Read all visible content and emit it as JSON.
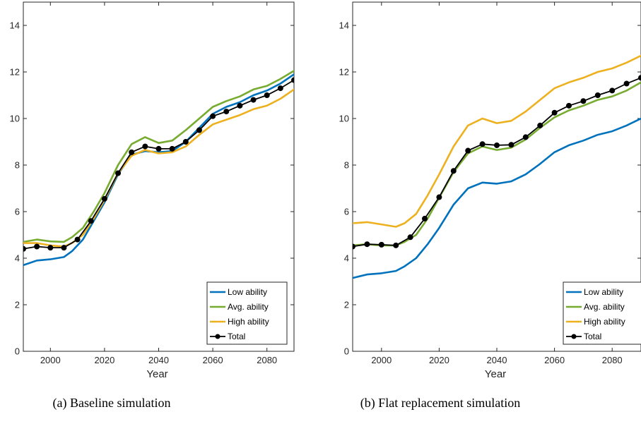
{
  "chart_data": [
    {
      "type": "line",
      "caption": "(a)  Baseline simulation",
      "xlabel": "Year",
      "ylabel": "",
      "xlim": [
        1990,
        2090
      ],
      "ylim": [
        0,
        15
      ],
      "xticks": [
        2000,
        2020,
        2040,
        2060,
        2080
      ],
      "yticks": [
        0,
        2,
        4,
        6,
        8,
        10,
        12,
        14
      ],
      "grid": false,
      "legend_position": "bottom-right",
      "series": [
        {
          "name": "Low ability",
          "color": "#0072BD",
          "marker": "none",
          "x": [
            1990,
            1995,
            2000,
            2005,
            2008,
            2012,
            2016,
            2020,
            2025,
            2030,
            2035,
            2040,
            2045,
            2050,
            2055,
            2060,
            2065,
            2070,
            2075,
            2080,
            2085,
            2090
          ],
          "y": [
            3.7,
            3.9,
            3.95,
            4.05,
            4.3,
            4.8,
            5.6,
            6.4,
            7.6,
            8.45,
            8.6,
            8.55,
            8.6,
            9.0,
            9.6,
            10.2,
            10.5,
            10.7,
            11.0,
            11.2,
            11.5,
            11.9
          ]
        },
        {
          "name": "Avg. ability",
          "color": "#77AC30",
          "marker": "none",
          "x": [
            1990,
            1995,
            2000,
            2005,
            2008,
            2012,
            2016,
            2020,
            2025,
            2030,
            2035,
            2040,
            2045,
            2050,
            2055,
            2060,
            2065,
            2070,
            2075,
            2080,
            2085,
            2090
          ],
          "y": [
            4.7,
            4.8,
            4.72,
            4.7,
            4.9,
            5.3,
            6.0,
            6.8,
            8.0,
            8.9,
            9.2,
            8.95,
            9.05,
            9.5,
            10.0,
            10.5,
            10.75,
            10.95,
            11.25,
            11.4,
            11.7,
            12.05
          ]
        },
        {
          "name": "High ability",
          "color": "#EDB120",
          "marker": "none",
          "x": [
            1990,
            1995,
            2000,
            2005,
            2008,
            2012,
            2016,
            2020,
            2025,
            2030,
            2035,
            2040,
            2045,
            2050,
            2055,
            2060,
            2065,
            2070,
            2075,
            2080,
            2085,
            2090
          ],
          "y": [
            4.65,
            4.65,
            4.55,
            4.5,
            4.65,
            5.0,
            5.7,
            6.5,
            7.65,
            8.4,
            8.65,
            8.5,
            8.55,
            8.8,
            9.3,
            9.75,
            9.95,
            10.15,
            10.4,
            10.55,
            10.85,
            11.25
          ]
        },
        {
          "name": "Total",
          "color": "#000000",
          "marker": "circle",
          "x": [
            1990,
            1995,
            2000,
            2005,
            2010,
            2015,
            2020,
            2025,
            2030,
            2035,
            2040,
            2045,
            2050,
            2055,
            2060,
            2065,
            2070,
            2075,
            2080,
            2085,
            2090
          ],
          "y": [
            4.4,
            4.5,
            4.45,
            4.45,
            4.8,
            5.6,
            6.55,
            7.65,
            8.55,
            8.8,
            8.7,
            8.7,
            9.0,
            9.5,
            10.1,
            10.3,
            10.55,
            10.8,
            11.0,
            11.3,
            11.65
          ]
        }
      ]
    },
    {
      "type": "line",
      "caption": "(b)  Flat replacement simulation",
      "xlabel": "Year",
      "ylabel": "",
      "xlim": [
        1990,
        2090
      ],
      "ylim": [
        0,
        15
      ],
      "xticks": [
        2000,
        2020,
        2040,
        2060,
        2080
      ],
      "yticks": [
        0,
        2,
        4,
        6,
        8,
        10,
        12,
        14
      ],
      "grid": false,
      "legend_position": "bottom-right",
      "series": [
        {
          "name": "Low ability",
          "color": "#0072BD",
          "marker": "none",
          "x": [
            1990,
            1995,
            2000,
            2005,
            2008,
            2012,
            2016,
            2020,
            2025,
            2030,
            2035,
            2040,
            2045,
            2050,
            2055,
            2060,
            2065,
            2070,
            2075,
            2080,
            2085,
            2090
          ],
          "y": [
            3.15,
            3.3,
            3.35,
            3.45,
            3.65,
            4.0,
            4.6,
            5.3,
            6.3,
            7.0,
            7.25,
            7.2,
            7.3,
            7.6,
            8.05,
            8.55,
            8.85,
            9.05,
            9.3,
            9.45,
            9.7,
            10.0
          ]
        },
        {
          "name": "Avg. ability",
          "color": "#77AC30",
          "marker": "none",
          "x": [
            1990,
            1995,
            2000,
            2005,
            2008,
            2012,
            2016,
            2020,
            2025,
            2030,
            2035,
            2040,
            2045,
            2050,
            2055,
            2060,
            2065,
            2070,
            2075,
            2080,
            2085,
            2090
          ],
          "y": [
            4.55,
            4.6,
            4.55,
            4.55,
            4.7,
            5.0,
            5.7,
            6.6,
            7.7,
            8.5,
            8.8,
            8.65,
            8.75,
            9.1,
            9.6,
            10.05,
            10.35,
            10.55,
            10.8,
            10.95,
            11.2,
            11.55
          ]
        },
        {
          "name": "High ability",
          "color": "#EDB120",
          "marker": "none",
          "x": [
            1990,
            1995,
            2000,
            2005,
            2008,
            2012,
            2016,
            2020,
            2025,
            2030,
            2035,
            2040,
            2045,
            2050,
            2055,
            2060,
            2065,
            2070,
            2075,
            2080,
            2085,
            2090
          ],
          "y": [
            5.5,
            5.55,
            5.45,
            5.35,
            5.5,
            5.9,
            6.7,
            7.6,
            8.8,
            9.7,
            10.0,
            9.8,
            9.9,
            10.3,
            10.8,
            11.3,
            11.55,
            11.75,
            12.0,
            12.15,
            12.4,
            12.7
          ]
        },
        {
          "name": "Total",
          "color": "#000000",
          "marker": "circle",
          "x": [
            1990,
            1995,
            2000,
            2005,
            2010,
            2015,
            2020,
            2025,
            2030,
            2035,
            2040,
            2045,
            2050,
            2055,
            2060,
            2065,
            2070,
            2075,
            2080,
            2085,
            2090
          ],
          "y": [
            4.5,
            4.6,
            4.58,
            4.55,
            4.9,
            5.7,
            6.62,
            7.75,
            8.62,
            8.9,
            8.85,
            8.87,
            9.2,
            9.7,
            10.25,
            10.55,
            10.75,
            11.0,
            11.2,
            11.5,
            11.75
          ]
        }
      ]
    }
  ]
}
